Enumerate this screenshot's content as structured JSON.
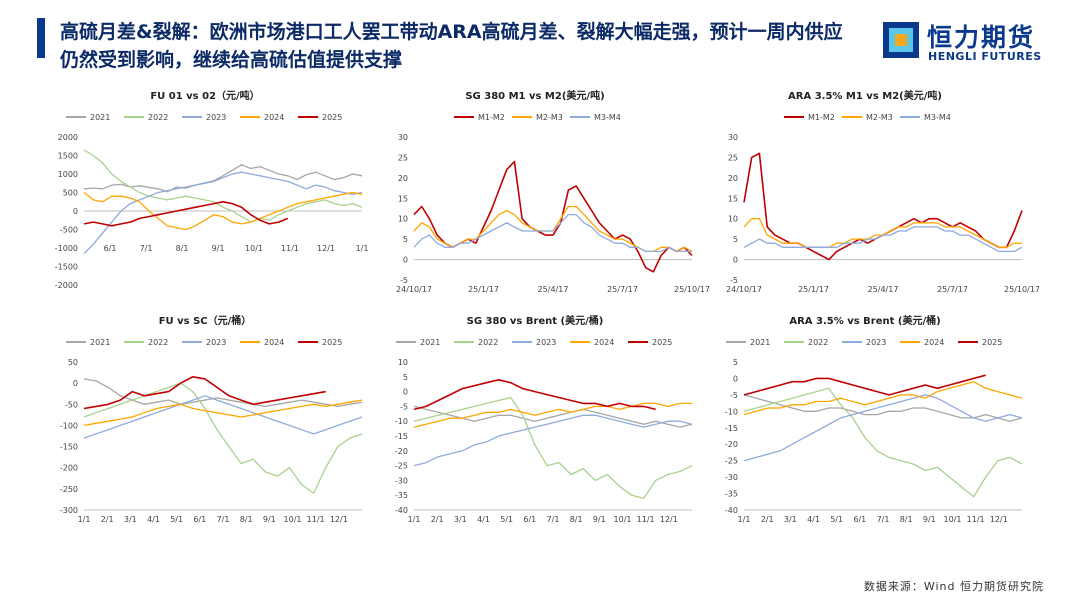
{
  "header": {
    "title": "高硫月差&裂解：欧洲市场港口工人罢工带动ARA高硫月差、裂解大幅走强，预计一周内供应仍然受到影响，继续给高硫估值提供支撑"
  },
  "logo": {
    "cn": "恒力期货",
    "en": "HENGLI FUTURES"
  },
  "footer": {
    "source": "数据来源：Wind 恒力期货研究院"
  },
  "colors": {
    "2021": "#a6a6a6",
    "2022": "#a9d18e",
    "2023": "#8faadc",
    "2024": "#ffa500",
    "2025": "#c00000",
    "M1-M2": "#c00000",
    "M2-M3": "#ffa500",
    "M3-M4": "#8faadc",
    "accent": "#0b3a8c"
  },
  "chart_data": [
    {
      "type": "line",
      "title": "FU 01 vs 02（元/吨）",
      "legend": [
        "2021",
        "2022",
        "2023",
        "2024",
        "2025"
      ],
      "x_ticks": [
        "6/1",
        "7/1",
        "8/1",
        "9/1",
        "10/1",
        "11/1",
        "12/1",
        "1/1"
      ],
      "ylim": [
        -2000,
        2000
      ],
      "y_ticks": [
        2000,
        1500,
        1000,
        500,
        0,
        -500,
        -1000,
        -1500,
        -2000
      ],
      "series": [
        {
          "name": "2021",
          "values": [
            600,
            620,
            600,
            700,
            720,
            650,
            680,
            640,
            600,
            520,
            650,
            620,
            700,
            760,
            820,
            950,
            1100,
            1250,
            1150,
            1200,
            1100,
            1000,
            950,
            850,
            980,
            1050,
            950,
            850,
            900,
            1000,
            950
          ]
        },
        {
          "name": "2022",
          "values": [
            1650,
            1500,
            1300,
            1000,
            800,
            650,
            500,
            400,
            350,
            300,
            350,
            400,
            350,
            300,
            250,
            100,
            0,
            -150,
            -300,
            -200,
            -250,
            -100,
            0,
            100,
            200,
            250,
            300,
            200,
            150,
            200,
            100
          ]
        },
        {
          "name": "2023",
          "values": [
            -1150,
            -900,
            -600,
            -300,
            0,
            200,
            300,
            400,
            500,
            550,
            600,
            650,
            700,
            750,
            800,
            900,
            1000,
            1050,
            1000,
            950,
            900,
            850,
            800,
            700,
            600,
            700,
            650,
            550,
            500,
            450,
            500
          ]
        },
        {
          "name": "2024",
          "values": [
            500,
            300,
            250,
            400,
            400,
            350,
            250,
            0,
            -200,
            -400,
            -450,
            -500,
            -400,
            -250,
            -100,
            -150,
            -300,
            -350,
            -300,
            -200,
            -100,
            0,
            100,
            200,
            250,
            300,
            350,
            400,
            450,
            500,
            450
          ]
        },
        {
          "name": "2025",
          "values": [
            -350,
            -300,
            -350,
            -400,
            -350,
            -300,
            -200,
            -150,
            -100,
            -50,
            0,
            50,
            100,
            150,
            200,
            250,
            200,
            100,
            -100,
            -250,
            -350,
            -300,
            -200
          ]
        }
      ]
    },
    {
      "type": "line",
      "title": "SG 380 M1 vs M2(美元/吨)",
      "legend": [
        "M1-M2",
        "M2-M3",
        "M3-M4"
      ],
      "x_ticks": [
        "24/10/17",
        "25/1/17",
        "25/4/17",
        "25/7/17",
        "25/10/17"
      ],
      "ylim": [
        -5,
        30
      ],
      "y_ticks": [
        30,
        25,
        20,
        15,
        10,
        5,
        0,
        -5
      ],
      "series": [
        {
          "name": "M1-M2",
          "values": [
            11,
            13,
            10,
            6,
            4,
            3,
            4,
            5,
            4,
            8,
            12,
            17,
            22,
            24,
            10,
            8,
            7,
            6,
            6,
            9,
            17,
            18,
            15,
            12,
            9,
            7,
            5,
            6,
            5,
            2,
            -2,
            -3,
            1,
            3,
            2,
            3,
            1
          ]
        },
        {
          "name": "M2-M3",
          "values": [
            7,
            9,
            8,
            5,
            4,
            3,
            4,
            5,
            5,
            7,
            9,
            11,
            12,
            11,
            9,
            8,
            7,
            7,
            7,
            10,
            13,
            13,
            11,
            9,
            7,
            6,
            5,
            5,
            4,
            3,
            2,
            2,
            3,
            3,
            2,
            3,
            2
          ]
        },
        {
          "name": "M3-M4",
          "values": [
            3,
            5,
            6,
            4,
            3,
            3,
            4,
            4,
            5,
            6,
            7,
            8,
            9,
            8,
            7,
            7,
            7,
            7,
            7,
            9,
            11,
            11,
            9,
            8,
            6,
            5,
            4,
            4,
            3,
            3,
            2,
            2,
            2,
            3,
            2,
            2,
            2
          ]
        }
      ]
    },
    {
      "type": "line",
      "title": "ARA 3.5% M1 vs M2(美元/吨)",
      "legend": [
        "M1-M2",
        "M2-M3",
        "M3-M4"
      ],
      "x_ticks": [
        "24/10/17",
        "25/1/17",
        "25/4/17",
        "25/7/17",
        "25/10/17"
      ],
      "ylim": [
        -5,
        30
      ],
      "y_ticks": [
        30,
        25,
        20,
        15,
        10,
        5,
        0,
        -5
      ],
      "series": [
        {
          "name": "M1-M2",
          "values": [
            14,
            25,
            26,
            8,
            6,
            5,
            4,
            4,
            3,
            2,
            1,
            0,
            2,
            3,
            4,
            5,
            4,
            5,
            6,
            7,
            8,
            9,
            10,
            9,
            10,
            10,
            9,
            8,
            9,
            8,
            7,
            5,
            4,
            3,
            3,
            7,
            12
          ]
        },
        {
          "name": "M2-M3",
          "values": [
            8,
            10,
            10,
            6,
            5,
            4,
            4,
            4,
            3,
            3,
            3,
            3,
            4,
            4,
            5,
            5,
            5,
            6,
            6,
            7,
            8,
            8,
            9,
            9,
            9,
            9,
            8,
            8,
            8,
            7,
            6,
            5,
            4,
            3,
            3,
            4,
            4
          ]
        },
        {
          "name": "M3-M4",
          "values": [
            3,
            4,
            5,
            4,
            4,
            3,
            3,
            3,
            3,
            3,
            3,
            3,
            3,
            4,
            4,
            4,
            5,
            5,
            6,
            6,
            7,
            7,
            8,
            8,
            8,
            8,
            7,
            7,
            6,
            6,
            5,
            4,
            3,
            2,
            2,
            2,
            3
          ]
        }
      ]
    },
    {
      "type": "line",
      "title": "FU vs SC（元/桶）",
      "legend": [
        "2021",
        "2022",
        "2023",
        "2024",
        "2025"
      ],
      "x_ticks": [
        "1/1",
        "2/1",
        "3/1",
        "4/1",
        "5/1",
        "6/1",
        "7/1",
        "8/1",
        "9/1",
        "10/1",
        "11/1",
        "12/1"
      ],
      "ylim": [
        -300,
        50
      ],
      "y_ticks": [
        50,
        0,
        -50,
        -100,
        -150,
        -200,
        -250,
        -300
      ],
      "series": [
        {
          "name": "2021",
          "values": [
            10,
            5,
            -10,
            -30,
            -40,
            -50,
            -45,
            -40,
            -50,
            -45,
            -40,
            -35,
            -40,
            -45,
            -50,
            -55,
            -50,
            -45,
            -40,
            -45,
            -50,
            -55,
            -50,
            -45
          ]
        },
        {
          "name": "2022",
          "values": [
            -80,
            -70,
            -60,
            -50,
            -40,
            -30,
            -20,
            -10,
            0,
            -20,
            -60,
            -110,
            -150,
            -190,
            -180,
            -210,
            -220,
            -200,
            -240,
            -260,
            -200,
            -150,
            -130,
            -120
          ]
        },
        {
          "name": "2023",
          "values": [
            -130,
            -120,
            -110,
            -100,
            -90,
            -80,
            -70,
            -60,
            -50,
            -40,
            -30,
            -40,
            -50,
            -60,
            -70,
            -80,
            -90,
            -100,
            -110,
            -120,
            -110,
            -100,
            -90,
            -80
          ]
        },
        {
          "name": "2024",
          "values": [
            -100,
            -95,
            -90,
            -85,
            -80,
            -70,
            -60,
            -55,
            -50,
            -60,
            -65,
            -70,
            -75,
            -80,
            -75,
            -70,
            -65,
            -60,
            -55,
            -50,
            -55,
            -50,
            -45,
            -40
          ]
        },
        {
          "name": "2025",
          "values": [
            -60,
            -55,
            -50,
            -40,
            -20,
            -30,
            -25,
            -20,
            0,
            15,
            10,
            -10,
            -30,
            -40,
            -50,
            -45,
            -40,
            -35,
            -30,
            -25,
            -20
          ]
        }
      ]
    },
    {
      "type": "line",
      "title": "SG 380 vs Brent (美元/桶)",
      "legend": [
        "2021",
        "2022",
        "2023",
        "2024",
        "2025"
      ],
      "x_ticks": [
        "1/1",
        "2/1",
        "3/1",
        "4/1",
        "5/1",
        "6/1",
        "7/1",
        "8/1",
        "9/1",
        "10/1",
        "11/1",
        "12/1"
      ],
      "ylim": [
        -40,
        10
      ],
      "y_ticks": [
        10,
        5,
        0,
        -5,
        -10,
        -15,
        -20,
        -25,
        -30,
        -35,
        -40
      ],
      "series": [
        {
          "name": "2021",
          "values": [
            -5,
            -6,
            -7,
            -8,
            -9,
            -10,
            -9,
            -8,
            -8,
            -9,
            -10,
            -9,
            -8,
            -7,
            -6,
            -7,
            -8,
            -9,
            -10,
            -11,
            -10,
            -11,
            -12,
            -11
          ]
        },
        {
          "name": "2022",
          "values": [
            -10,
            -9,
            -8,
            -7,
            -6,
            -5,
            -4,
            -3,
            -2,
            -8,
            -18,
            -25,
            -24,
            -28,
            -26,
            -30,
            -28,
            -32,
            -35,
            -36,
            -30,
            -28,
            -27,
            -25
          ]
        },
        {
          "name": "2023",
          "values": [
            -25,
            -24,
            -22,
            -21,
            -20,
            -18,
            -17,
            -15,
            -14,
            -13,
            -12,
            -11,
            -10,
            -9,
            -8,
            -8,
            -9,
            -10,
            -11,
            -12,
            -11,
            -10,
            -10,
            -11
          ]
        },
        {
          "name": "2024",
          "values": [
            -12,
            -11,
            -10,
            -9,
            -9,
            -8,
            -7,
            -7,
            -6,
            -7,
            -8,
            -7,
            -6,
            -7,
            -6,
            -5,
            -5,
            -6,
            -5,
            -4,
            -4,
            -5,
            -4,
            -4
          ]
        },
        {
          "name": "2025",
          "values": [
            -6,
            -5,
            -3,
            -1,
            1,
            2,
            3,
            4,
            3,
            1,
            0,
            -1,
            -2,
            -3,
            -4,
            -4,
            -5,
            -4,
            -5,
            -5,
            -6
          ]
        }
      ]
    },
    {
      "type": "line",
      "title": "ARA 3.5% vs Brent (美元/桶)",
      "legend": [
        "2021",
        "2022",
        "2023",
        "2024",
        "2025"
      ],
      "x_ticks": [
        "1/1",
        "2/1",
        "3/1",
        "4/1",
        "5/1",
        "6/1",
        "7/1",
        "8/1",
        "9/1",
        "10/1",
        "11/1",
        "12/1"
      ],
      "ylim": [
        -40,
        5
      ],
      "y_ticks": [
        5,
        0,
        -5,
        -10,
        -15,
        -20,
        -25,
        -30,
        -35,
        -40
      ],
      "series": [
        {
          "name": "2021",
          "values": [
            -5,
            -6,
            -7,
            -8,
            -9,
            -10,
            -10,
            -9,
            -9,
            -10,
            -11,
            -11,
            -10,
            -10,
            -9,
            -9,
            -10,
            -11,
            -12,
            -12,
            -11,
            -12,
            -13,
            -12
          ]
        },
        {
          "name": "2022",
          "values": [
            -10,
            -9,
            -8,
            -7,
            -6,
            -5,
            -4,
            -3,
            -8,
            -12,
            -18,
            -22,
            -24,
            -25,
            -26,
            -28,
            -27,
            -30,
            -33,
            -36,
            -30,
            -25,
            -24,
            -26
          ]
        },
        {
          "name": "2023",
          "values": [
            -25,
            -24,
            -23,
            -22,
            -20,
            -18,
            -16,
            -14,
            -12,
            -11,
            -10,
            -9,
            -8,
            -7,
            -6,
            -5,
            -6,
            -8,
            -10,
            -12,
            -13,
            -12,
            -11,
            -12
          ]
        },
        {
          "name": "2024",
          "values": [
            -11,
            -10,
            -9,
            -9,
            -8,
            -8,
            -7,
            -7,
            -6,
            -7,
            -8,
            -7,
            -6,
            -5,
            -5,
            -6,
            -4,
            -3,
            -2,
            -1,
            -3,
            -4,
            -5,
            -6
          ]
        },
        {
          "name": "2025",
          "values": [
            -5,
            -4,
            -3,
            -2,
            -1,
            -1,
            0,
            0,
            -1,
            -2,
            -3,
            -4,
            -5,
            -4,
            -3,
            -2,
            -3,
            -2,
            -1,
            0,
            1
          ]
        }
      ]
    }
  ]
}
